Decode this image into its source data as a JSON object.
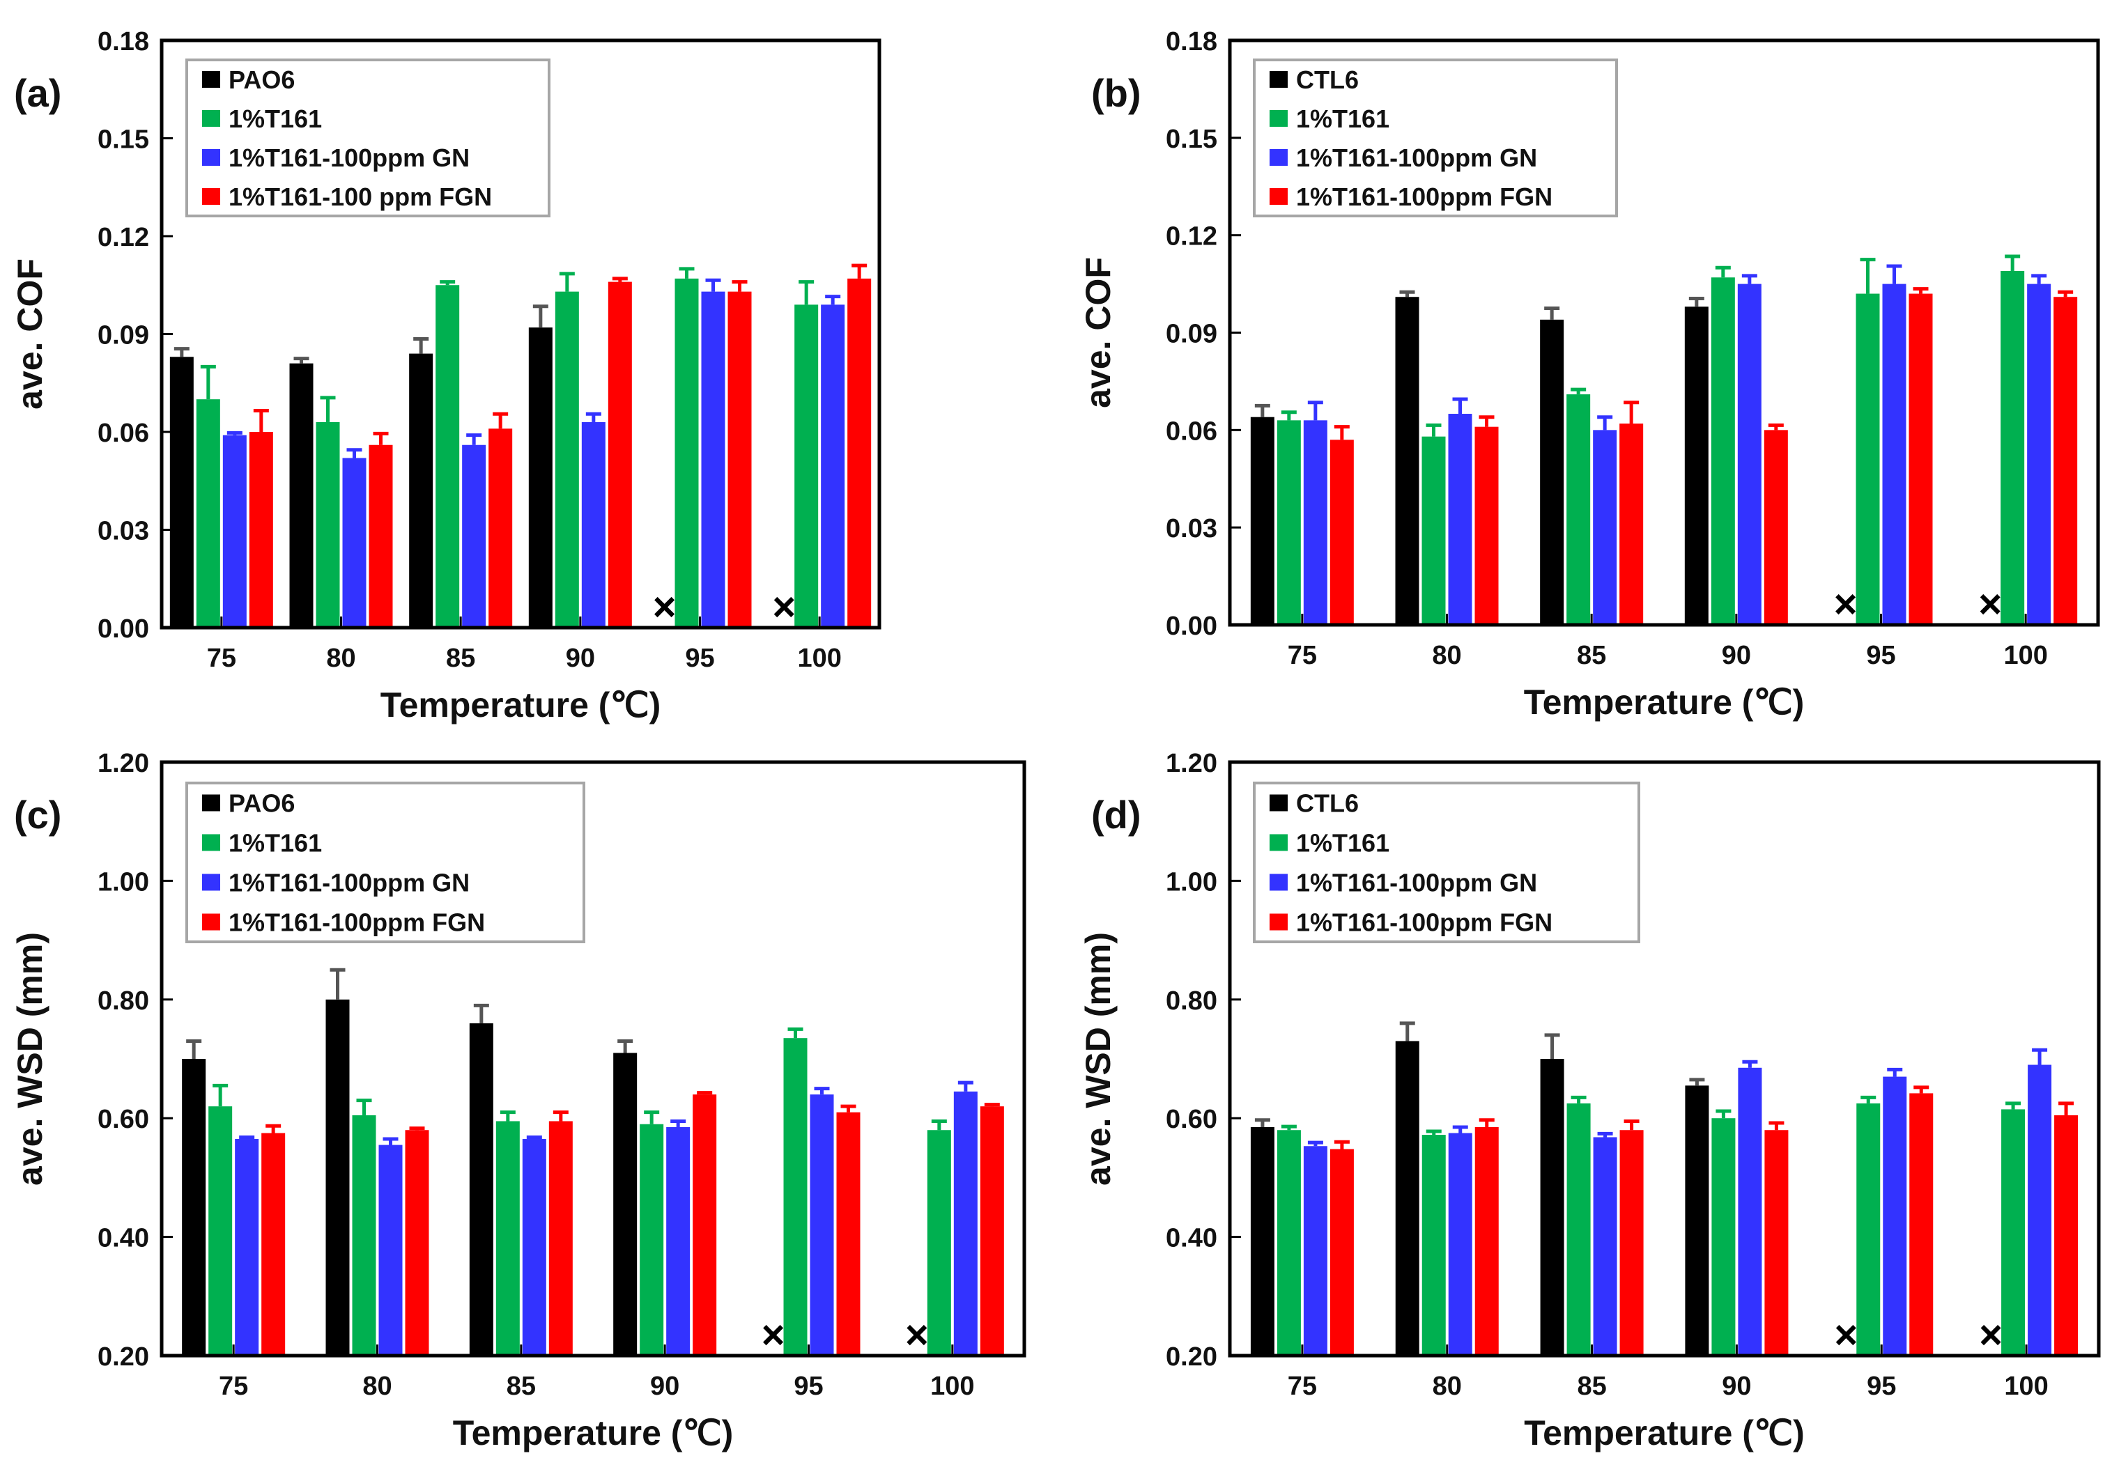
{
  "colors": {
    "black": "#000000",
    "green": "#00b050",
    "blue": "#3333ff",
    "red": "#ff0000",
    "error_bar": "#555555",
    "legend_border": "#a6a6a6",
    "frame": "#000000"
  },
  "chart_data": [
    {
      "panel": "(a)",
      "type": "bar",
      "categories": [
        "75",
        "80",
        "85",
        "90",
        "95",
        "100"
      ],
      "xlabel": "Temperature (℃)",
      "ylabel": "ave. COF",
      "ylim": [
        0,
        0.18
      ],
      "yticks": [
        "0.00",
        "0.03",
        "0.06",
        "0.09",
        "0.12",
        "0.15",
        "0.18"
      ],
      "missing_marker": "×",
      "series": [
        {
          "name": "PAO6",
          "color": "#000000",
          "values": [
            0.083,
            0.081,
            0.084,
            0.092,
            null,
            null
          ],
          "errors": [
            0.0025,
            0.0015,
            0.0045,
            0.0065,
            0,
            0
          ]
        },
        {
          "name": "1%T161",
          "color": "#00b050",
          "values": [
            0.07,
            0.063,
            0.105,
            0.103,
            0.107,
            0.099
          ],
          "errors": [
            0.01,
            0.0075,
            0.001,
            0.0055,
            0.003,
            0.007
          ]
        },
        {
          "name": "1%T161-100ppm GN",
          "color": "#3333ff",
          "values": [
            0.059,
            0.052,
            0.056,
            0.063,
            0.103,
            0.099
          ],
          "errors": [
            0.0007,
            0.0025,
            0.003,
            0.0025,
            0.0035,
            0.0025
          ]
        },
        {
          "name": "1%T161-100 ppm FGN",
          "color": "#ff0000",
          "values": [
            0.06,
            0.056,
            0.061,
            0.106,
            0.103,
            0.107
          ],
          "errors": [
            0.0065,
            0.0035,
            0.0045,
            0.001,
            0.003,
            0.004
          ]
        }
      ]
    },
    {
      "panel": "(b)",
      "type": "bar",
      "categories": [
        "75",
        "80",
        "85",
        "90",
        "95",
        "100"
      ],
      "xlabel": "Temperature (℃)",
      "ylabel": "ave. COF",
      "ylim": [
        0,
        0.18
      ],
      "yticks": [
        "0.00",
        "0.03",
        "0.06",
        "0.09",
        "0.12",
        "0.15",
        "0.18"
      ],
      "missing_marker": "×",
      "series": [
        {
          "name": "CTL6",
          "color": "#000000",
          "values": [
            0.064,
            0.101,
            0.094,
            0.098,
            null,
            null
          ],
          "errors": [
            0.0035,
            0.0015,
            0.0035,
            0.0025,
            0,
            0
          ]
        },
        {
          "name": "1%T161",
          "color": "#00b050",
          "values": [
            0.063,
            0.058,
            0.071,
            0.107,
            0.102,
            0.109
          ],
          "errors": [
            0.0025,
            0.0035,
            0.0015,
            0.003,
            0.0105,
            0.0045
          ]
        },
        {
          "name": "1%T161-100ppm GN",
          "color": "#3333ff",
          "values": [
            0.063,
            0.065,
            0.06,
            0.105,
            0.105,
            0.105
          ],
          "errors": [
            0.0055,
            0.0045,
            0.004,
            0.0025,
            0.0055,
            0.0025
          ]
        },
        {
          "name": "1%T161-100ppm FGN",
          "color": "#ff0000",
          "values": [
            0.057,
            0.061,
            0.062,
            0.06,
            0.102,
            0.101
          ],
          "errors": [
            0.004,
            0.003,
            0.0065,
            0.0015,
            0.0015,
            0.0015
          ]
        }
      ]
    },
    {
      "panel": "(c)",
      "type": "bar",
      "categories": [
        "75",
        "80",
        "85",
        "90",
        "95",
        "100"
      ],
      "xlabel": "Temperature (℃)",
      "ylabel": "ave. WSD (mm)",
      "ylim": [
        0.2,
        1.2
      ],
      "yticks": [
        "0.20",
        "0.40",
        "0.60",
        "0.80",
        "1.00",
        "1.20"
      ],
      "missing_marker": "×",
      "series": [
        {
          "name": "PAO6",
          "color": "#000000",
          "values": [
            0.7,
            0.8,
            0.76,
            0.71,
            null,
            null
          ],
          "errors": [
            0.03,
            0.05,
            0.03,
            0.02,
            0,
            0
          ]
        },
        {
          "name": "1%T161",
          "color": "#00b050",
          "values": [
            0.62,
            0.605,
            0.595,
            0.59,
            0.735,
            0.58
          ],
          "errors": [
            0.035,
            0.025,
            0.015,
            0.02,
            0.015,
            0.015
          ]
        },
        {
          "name": "1%T161-100ppm GN",
          "color": "#3333ff",
          "values": [
            0.565,
            0.555,
            0.565,
            0.585,
            0.64,
            0.645
          ],
          "errors": [
            0.003,
            0.01,
            0.003,
            0.01,
            0.01,
            0.015
          ]
        },
        {
          "name": "1%T161-100ppm FGN",
          "color": "#ff0000",
          "values": [
            0.575,
            0.58,
            0.595,
            0.64,
            0.61,
            0.62
          ],
          "errors": [
            0.012,
            0.003,
            0.015,
            0.003,
            0.01,
            0.003
          ]
        }
      ]
    },
    {
      "panel": "(d)",
      "type": "bar",
      "categories": [
        "75",
        "80",
        "85",
        "90",
        "95",
        "100"
      ],
      "xlabel": "Temperature (℃)",
      "ylabel": "ave. WSD (mm)",
      "ylim": [
        0.2,
        1.2
      ],
      "yticks": [
        "0.20",
        "0.40",
        "0.60",
        "0.80",
        "1.00",
        "1.20"
      ],
      "missing_marker": "×",
      "series": [
        {
          "name": "CTL6",
          "color": "#000000",
          "values": [
            0.585,
            0.73,
            0.7,
            0.655,
            null,
            null
          ],
          "errors": [
            0.012,
            0.03,
            0.04,
            0.01,
            0,
            0
          ]
        },
        {
          "name": "1%T161",
          "color": "#00b050",
          "values": [
            0.58,
            0.572,
            0.625,
            0.6,
            0.625,
            0.615
          ],
          "errors": [
            0.006,
            0.006,
            0.01,
            0.012,
            0.01,
            0.01
          ]
        },
        {
          "name": "1%T161-100ppm GN",
          "color": "#3333ff",
          "values": [
            0.553,
            0.575,
            0.568,
            0.685,
            0.67,
            0.69
          ],
          "errors": [
            0.006,
            0.01,
            0.006,
            0.01,
            0.012,
            0.025
          ]
        },
        {
          "name": "1%T161-100ppm FGN",
          "color": "#ff0000",
          "values": [
            0.548,
            0.585,
            0.58,
            0.58,
            0.642,
            0.605
          ],
          "errors": [
            0.012,
            0.012,
            0.015,
            0.012,
            0.01,
            0.02
          ]
        }
      ]
    }
  ]
}
